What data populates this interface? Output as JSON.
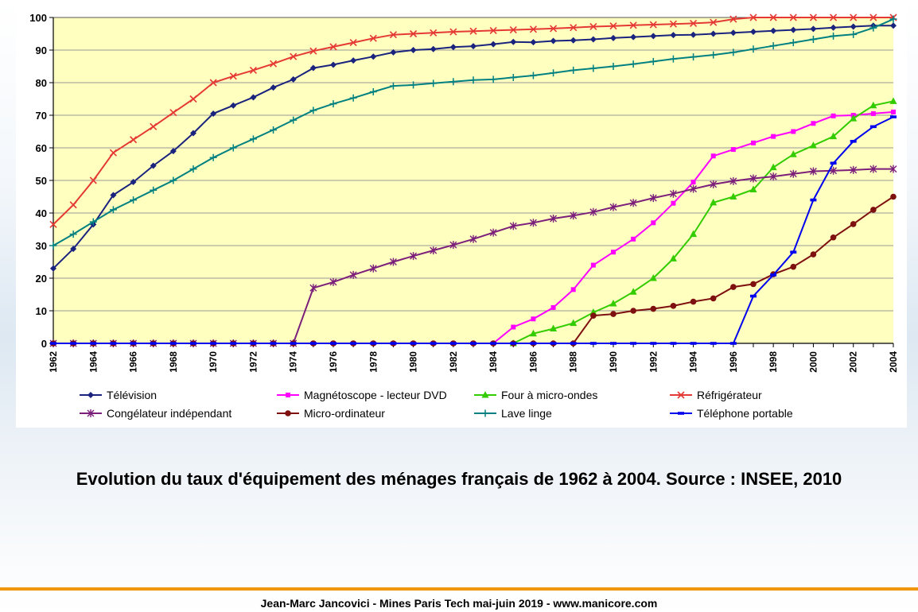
{
  "caption": "Evolution du taux d'équipement des ménages français de 1962 à 2004. Source : INSEE, 2010",
  "footer": "Jean-Marc Jancovici - Mines Paris Tech mai-juin 2019 - www.manicore.com",
  "chart_data": {
    "type": "line",
    "title": "",
    "xlabel": "",
    "ylabel": "",
    "xlim": [
      1962,
      2004
    ],
    "ylim": [
      0,
      100
    ],
    "y_ticks": [
      0,
      10,
      20,
      30,
      40,
      50,
      60,
      70,
      80,
      90,
      100
    ],
    "x_tick_labels": [
      "1962",
      "1964",
      "1966",
      "1968",
      "1970",
      "1972",
      "1974",
      "1976",
      "1978",
      "1980",
      "1982",
      "1984",
      "1986",
      "1988",
      "1990",
      "1992",
      "1994",
      "1996",
      "1998",
      "2000",
      "2002",
      "2004"
    ],
    "grid": "horizontal",
    "plot_background": "#ffffc0",
    "legend_placement": "bottom",
    "x": [
      1962,
      1963,
      1964,
      1965,
      1966,
      1967,
      1968,
      1969,
      1970,
      1971,
      1972,
      1973,
      1974,
      1975,
      1976,
      1977,
      1978,
      1979,
      1980,
      1981,
      1982,
      1983,
      1984,
      1985,
      1986,
      1987,
      1988,
      1989,
      1990,
      1991,
      1992,
      1993,
      1994,
      1995,
      1996,
      1997,
      1998,
      1999,
      2000,
      2001,
      2002,
      2003,
      2004
    ],
    "series": [
      {
        "name": "Télévision",
        "color": "#1a237e",
        "marker": "diamond",
        "values": [
          23,
          29,
          36.5,
          45.5,
          49.5,
          54.5,
          59,
          64.5,
          70.5,
          73,
          75.5,
          78.5,
          81,
          84.5,
          85.5,
          86.8,
          88,
          89.3,
          90,
          90.3,
          90.9,
          91.2,
          91.8,
          92.5,
          92.4,
          92.8,
          93,
          93.3,
          93.7,
          94,
          94.3,
          94.6,
          94.7,
          95,
          95.3,
          95.6,
          95.9,
          96.2,
          96.5,
          96.9,
          97.2,
          97.5,
          97.5
        ]
      },
      {
        "name": "Magnétoscope - lecteur DVD",
        "color": "#ff00ff",
        "marker": "square",
        "values": [
          0,
          0,
          0,
          0,
          0,
          0,
          0,
          0,
          0,
          0,
          0,
          0,
          0,
          0,
          0,
          0,
          0,
          0,
          0,
          0,
          0,
          0,
          0,
          5,
          7.5,
          11,
          16.5,
          24,
          28,
          32,
          37,
          43,
          49.5,
          57.5,
          59.5,
          61.5,
          63.5,
          65,
          67.5,
          69.8,
          70,
          70.5,
          71
        ]
      },
      {
        "name": "Four à micro-ondes",
        "color": "#33cc00",
        "marker": "triangle",
        "values": [
          null,
          null,
          null,
          null,
          null,
          null,
          null,
          null,
          null,
          null,
          null,
          null,
          null,
          null,
          null,
          null,
          null,
          null,
          null,
          null,
          null,
          null,
          null,
          0,
          3,
          4.5,
          6.2,
          9.5,
          12.2,
          15.8,
          20,
          26,
          33.5,
          43.2,
          45,
          47.2,
          54,
          58,
          60.7,
          63.5,
          69,
          73,
          74.3
        ]
      },
      {
        "name": "Réfrigérateur",
        "color": "#e53935",
        "marker": "x",
        "values": [
          36.5,
          42.5,
          50,
          58.5,
          62.5,
          66.5,
          70.8,
          75,
          80,
          82,
          83.8,
          85.8,
          88,
          89.7,
          91,
          92.3,
          93.6,
          94.7,
          95,
          95.3,
          95.6,
          95.8,
          96,
          96.2,
          96.4,
          96.6,
          96.9,
          97.2,
          97.4,
          97.6,
          97.8,
          98,
          98.2,
          98.5,
          99.5,
          100,
          100,
          100,
          100,
          100,
          100,
          100,
          100
        ]
      },
      {
        "name": "Congélateur indépendant",
        "color": "#7b1f7b",
        "marker": "asterisk",
        "values": [
          0,
          0,
          0,
          0,
          0,
          0,
          0,
          0,
          0,
          0,
          0,
          0,
          0,
          17,
          18.8,
          21,
          23,
          25,
          26.8,
          28.5,
          30.2,
          32,
          34,
          36,
          37,
          38.3,
          39.2,
          40.3,
          41.8,
          43.1,
          44.6,
          45.9,
          47.4,
          48.8,
          49.8,
          50.6,
          51.2,
          52,
          52.8,
          53,
          53.2,
          53.5,
          53.5
        ]
      },
      {
        "name": "Micro-ordinateur",
        "color": "#7f1010",
        "marker": "circle",
        "values": [
          0,
          0,
          0,
          0,
          0,
          0,
          0,
          0,
          0,
          0,
          0,
          0,
          0,
          0,
          0,
          0,
          0,
          0,
          0,
          0,
          0,
          0,
          0,
          0,
          0,
          0,
          0,
          8.5,
          9,
          10,
          10.6,
          11.5,
          12.8,
          13.8,
          17.3,
          18.2,
          21.2,
          23.5,
          27.3,
          32.5,
          36.6,
          41,
          45
        ]
      },
      {
        "name": "Lave linge",
        "color": "#008080",
        "marker": "plus",
        "values": [
          30,
          33.5,
          37.3,
          41,
          44,
          47,
          50,
          53.5,
          57,
          60,
          62.7,
          65.5,
          68.5,
          71.5,
          73.5,
          75.3,
          77.2,
          79,
          79.3,
          79.8,
          80.3,
          80.8,
          81,
          81.6,
          82.2,
          83,
          83.8,
          84.4,
          85,
          85.7,
          86.5,
          87.3,
          87.9,
          88.5,
          89.3,
          90.3,
          91.3,
          92.3,
          93.3,
          94.3,
          94.8,
          96.8,
          99.5
        ]
      },
      {
        "name": "Téléphone portable",
        "color": "#0000ee",
        "marker": "dash",
        "values": [
          0,
          0,
          0,
          0,
          0,
          0,
          0,
          0,
          0,
          0,
          0,
          0,
          0,
          0,
          0,
          0,
          0,
          0,
          0,
          0,
          0,
          0,
          0,
          0,
          0,
          0,
          0,
          0,
          0,
          0,
          0,
          0,
          0,
          0,
          0,
          14.5,
          21,
          28,
          44,
          55.3,
          62,
          66.5,
          69.5
        ]
      }
    ]
  }
}
